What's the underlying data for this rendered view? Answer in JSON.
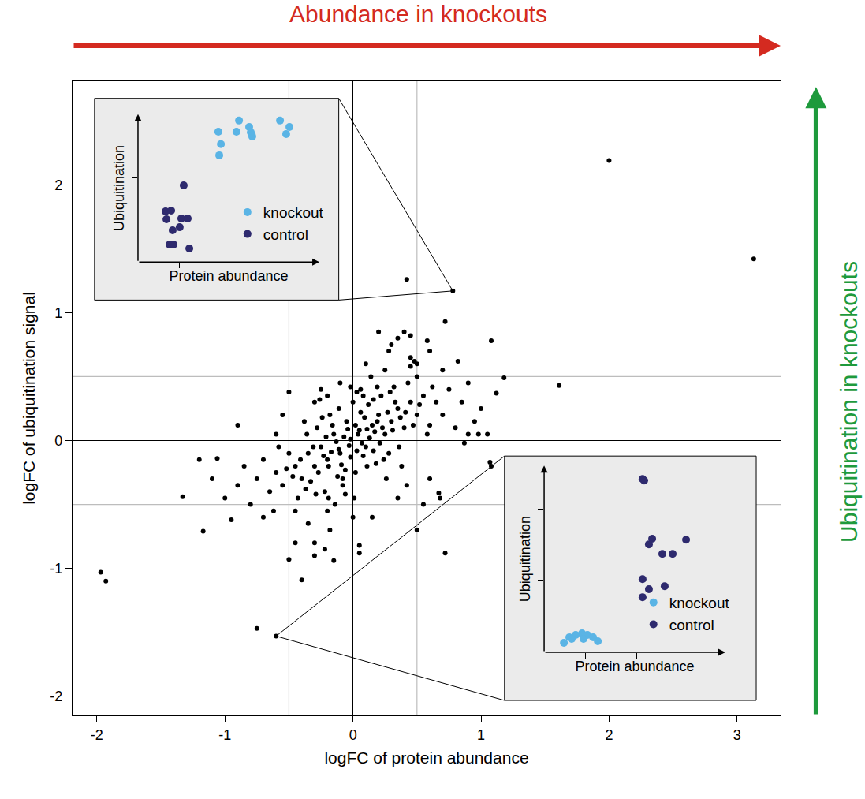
{
  "chart_data": [
    {
      "type": "scatter",
      "x_label": "logFC of protein abundance",
      "y_label": "logFC of ubiquitination signal",
      "xlim": [
        -2.19,
        3.34
      ],
      "ylim": [
        -2.15,
        2.81
      ],
      "xticks": [
        -2,
        -1,
        0,
        1,
        2,
        3
      ],
      "yticks": [
        -2,
        -1,
        0,
        1,
        2
      ],
      "grid": false,
      "color": "#000000",
      "reference_lines": {
        "x": [
          -0.5,
          0.5
        ],
        "y": [
          -0.5,
          0.5
        ]
      },
      "annotations": [
        {
          "text": "Abundance in knockouts",
          "color": "#d42a20"
        },
        {
          "text": "Ubiquitination in knockouts",
          "color": "#1e9a3c"
        }
      ],
      "x": [
        2.0,
        3.13,
        0.78,
        0.42,
        1.08,
        1.61,
        1.12,
        1.18,
        0.72,
        -1.97,
        -1.93,
        -1.33,
        -1.17,
        -0.6,
        -0.75,
        -0.4,
        0.72,
        0.5,
        1.08,
        1.07,
        -0.5,
        -0.15,
        0.05,
        0.05,
        -1.06,
        -0.9,
        -0.3,
        0.67,
        0.6,
        0.2,
        0.3,
        0.4,
        0.48,
        0.45,
        0.9,
        0.98,
        0.87,
        -0.02,
        0.05,
        0.1,
        -0.1,
        0.15,
        -0.15,
        0.2,
        -0.2,
        0.08,
        -0.05,
        0.25,
        -0.25,
        0.3,
        -0.3,
        0.12,
        -0.12,
        0.35,
        -0.35,
        0.02,
        0.0,
        0.18,
        -0.18,
        0.4,
        -0.4,
        0.22,
        -0.08,
        0.28,
        -0.28,
        0.45,
        -0.45,
        0.06,
        -0.06,
        0.32,
        -0.22,
        0.5,
        -0.5,
        0.38,
        -0.38,
        0.14,
        -0.14,
        0.55,
        -0.55,
        0.6,
        -0.6,
        0.25,
        -0.2,
        0.42,
        -0.3,
        0.65,
        -0.65,
        0.7,
        -0.7,
        0.5,
        -0.45,
        0.35,
        -0.1,
        0.75,
        -0.75,
        0.8,
        -0.8,
        0.15,
        -0.25,
        0.6,
        -0.55,
        0.85,
        -0.85,
        0.1,
        0.0,
        0.45,
        -0.35,
        0.9,
        -0.9,
        0.28,
        -0.18,
        0.55,
        -0.6,
        0.95,
        -1.0,
        0.7,
        -0.7,
        0.04,
        -0.03,
        0.07,
        -0.07,
        0.11,
        -0.11,
        0.13,
        -0.13,
        0.02,
        -0.02,
        0.17,
        -0.17,
        0.19,
        -0.19,
        0.09,
        -0.09,
        0.23,
        -0.23,
        0.03,
        -0.04,
        0.27,
        -0.27,
        0.16,
        -0.16,
        0.31,
        -0.31,
        0.21,
        -0.21,
        0.06,
        -0.06,
        0.33,
        -0.33,
        0.24,
        -0.24,
        0.37,
        -0.37,
        0.11,
        -0.11,
        0.29,
        -0.29,
        0.41,
        -0.41,
        0.36,
        -0.36,
        0.19,
        -0.19,
        0.47,
        -0.47,
        0.08,
        -0.08,
        0.52,
        -0.52,
        0.43,
        -0.43,
        0.58,
        -0.58,
        0.26,
        -0.26,
        0.62,
        -0.62,
        1.0,
        1.05,
        -1.1,
        -1.2,
        0.82,
        -0.95,
        0.68,
        -0.5,
        0.35,
        -0.3,
        0.58,
        0.5,
        0.45,
        -0.45,
        -0.22,
        0.03,
        -0.02,
        0.01,
        0.16,
        -0.2
      ],
      "values": [
        2.19,
        1.42,
        1.17,
        1.26,
        0.78,
        0.43,
        0.37,
        0.49,
        0.93,
        -1.03,
        -1.1,
        -0.44,
        -0.71,
        -1.53,
        -1.47,
        -1.09,
        -0.88,
        -0.7,
        -0.2,
        -0.17,
        -0.93,
        -0.94,
        -0.82,
        -0.88,
        -0.14,
        0.12,
        -0.9,
        -0.41,
        0.7,
        0.85,
        0.75,
        0.85,
        0.62,
        0.58,
        0.05,
        0.05,
        -0.02,
        0.01,
        0.08,
        -0.05,
        -0.1,
        0.12,
        0.05,
        0.2,
        -0.15,
        -0.12,
        0.15,
        0.05,
        -0.05,
        0.15,
        -0.2,
        0.28,
        -0.28,
        0.25,
        -0.1,
        -0.25,
        0.3,
        -0.18,
        0.2,
        0.1,
        -0.3,
        0.35,
        -0.35,
        -0.1,
        0.1,
        0.3,
        -0.2,
        0.4,
        -0.42,
        0.42,
        -0.4,
        0.2,
        -0.1,
        -0.2,
        0.15,
        0.5,
        -0.5,
        0.35,
        -0.35,
        0.12,
        -0.25,
        0.55,
        -0.55,
        -0.35,
        0.3,
        0.3,
        -0.4,
        0.2,
        -0.15,
        0.5,
        -0.55,
        -0.45,
        0.45,
        0.4,
        -0.3,
        0.1,
        -0.5,
        -0.6,
        0.4,
        -0.3,
        0.2,
        0.3,
        -0.2,
        0.6,
        -0.6,
        0.65,
        -0.65,
        0.45,
        -0.35,
        0.7,
        -0.7,
        -0.5,
        0.05,
        0.15,
        -0.45,
        0.55,
        -0.6,
        0.05,
        -0.04,
        -0.02,
        0.03,
        0.09,
        -0.07,
        0.02,
        -0.01,
        0.12,
        -0.13,
        0.07,
        -0.09,
        0.15,
        -0.2,
        0.18,
        -0.19,
        0.1,
        -0.12,
        -0.08,
        0.09,
        0.22,
        -0.25,
        -0.08,
        0.12,
        0.08,
        -0.05,
        -0.02,
        0.03,
        0.22,
        -0.23,
        0.3,
        -0.32,
        -0.15,
        0.18,
        0.18,
        -0.38,
        -0.2,
        0.25,
        0.38,
        -0.42,
        0.22,
        -0.15,
        -0.05,
        0.05,
        0.42,
        -0.45,
        0.12,
        -0.28,
        0.35,
        -0.3,
        0.28,
        -0.22,
        0.45,
        -0.45,
        0.05,
        -0.05,
        -0.3,
        0.32,
        0.42,
        -0.55,
        0.25,
        0.05,
        -0.3,
        -0.15,
        0.62,
        -0.62,
        -0.45,
        0.38,
        0.8,
        -0.8,
        0.78,
        0.6,
        0.82,
        -0.8,
        -0.85,
        0.38,
        0.42,
        -0.45,
        0.32,
        0.35
      ]
    },
    {
      "type": "scatter",
      "x_label": "Protein abundance",
      "y_label": "Ubiquitination",
      "xlim": [
        0,
        10
      ],
      "ylim": [
        0,
        10
      ],
      "xticks": [
        2.3
      ],
      "yticks": [
        5.7
      ],
      "tick_labels": false,
      "legend": "lower right",
      "zoom_of": {
        "x": 0.78,
        "y": 1.17
      },
      "series": [
        {
          "name": "knockout",
          "color": "#5ab4e5",
          "x": [
            4.43,
            4.57,
            4.48,
            5.57,
            5.43,
            6.13,
            6.22,
            6.3,
            7.83,
            8.35,
            8.17
          ],
          "values": [
            8.82,
            7.97,
            7.22,
            9.57,
            8.82,
            9.14,
            8.77,
            8.5,
            9.57,
            9.14,
            8.66
          ]
        },
        {
          "name": "control",
          "color": "#2e2a6e",
          "x": [
            2.52,
            1.52,
            1.83,
            1.57,
            2.39,
            2.74,
            1.91,
            2.3,
            1.74,
            1.96,
            2.83
          ],
          "values": [
            5.19,
            3.42,
            3.48,
            2.89,
            2.94,
            2.94,
            2.14,
            2.35,
            1.18,
            1.18,
            0.91
          ]
        }
      ]
    },
    {
      "type": "scatter",
      "x_label": "Protein abundance",
      "y_label": "Ubiquitination",
      "xlim": [
        0,
        10
      ],
      "ylim": [
        0,
        10
      ],
      "xticks": [
        2.26,
        5.13
      ],
      "yticks": [
        3.88,
        7.68
      ],
      "tick_labels": false,
      "legend": "lower right",
      "zoom_of": {
        "x": -0.6,
        "y": -1.53
      },
      "series": [
        {
          "name": "knockout",
          "color": "#5ab4e5",
          "x": [
            1.09,
            1.39,
            1.74,
            2.09,
            2.39,
            2.7,
            2.96,
            1.52,
            2.17
          ],
          "values": [
            0.51,
            0.8,
            0.93,
            1.01,
            0.93,
            0.8,
            0.59,
            0.72,
            0.72
          ]
        },
        {
          "name": "control",
          "color": "#2e2a6e",
          "x": [
            5.43,
            5.52,
            5.78,
            5.96,
            6.52,
            7.09,
            7.83,
            5.43,
            5.78,
            5.43,
            6.65
          ],
          "values": [
            9.28,
            9.2,
            5.78,
            6.08,
            5.27,
            5.27,
            6.03,
            3.92,
            3.38,
            2.95,
            3.54
          ]
        }
      ]
    }
  ]
}
